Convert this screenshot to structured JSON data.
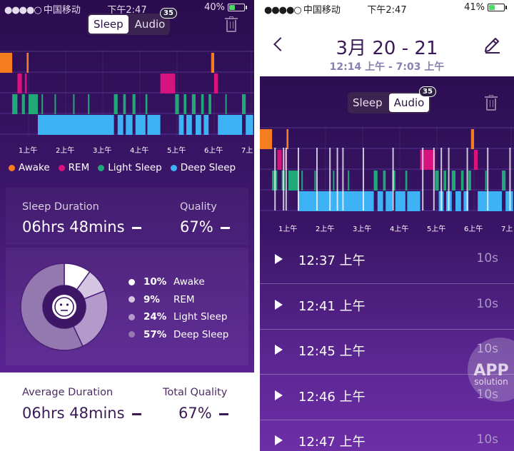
{
  "status_bar": {
    "carrier": "中国移动",
    "time": "下午2:47",
    "battery": "40%",
    "battery_right": "41%",
    "battery_level_left": 0.4,
    "battery_level_right": 0.41
  },
  "colors": {
    "awake": "#f57c1f",
    "rem": "#d6137e",
    "light": "#21a878",
    "deep": "#3db2f5",
    "awake_legend": "#f57c1f",
    "rem_legend": "#d6137e",
    "light_legend": "#21a878",
    "deep_legend": "#3db2f5"
  },
  "left": {
    "segmented": {
      "sleep": "Sleep",
      "audio": "Audio",
      "badge": "35"
    },
    "hour_ticks": [
      "1上午",
      "2上午",
      "3上午",
      "4上午",
      "5上午",
      "6上午",
      "7上"
    ],
    "legend": [
      {
        "label": "Awake",
        "color": "#f57c1f"
      },
      {
        "label": "REM",
        "color": "#d6137e"
      },
      {
        "label": "Light Sleep",
        "color": "#21a878"
      },
      {
        "label": "Deep Sleep",
        "color": "#3db2f5"
      }
    ],
    "stats": {
      "duration_label": "Sleep Duration",
      "duration_value": "06hrs 48mins",
      "quality_label": "Quality",
      "quality_value": "67%"
    },
    "breakdown": [
      {
        "pct": "10%",
        "label": "Awake",
        "value": 10,
        "color": "#ffffff"
      },
      {
        "pct": "9%",
        "label": "REM",
        "value": 9,
        "color": "#d4c6e2"
      },
      {
        "pct": "24%",
        "label": "Light Sleep",
        "value": 24,
        "color": "#b39acb"
      },
      {
        "pct": "57%",
        "label": "Deep Sleep",
        "value": 57,
        "color": "#9479b0"
      }
    ],
    "face_icon": "neutral-face-icon",
    "bottom": {
      "avg_label": "Average Duration",
      "avg_value": "06hrs 48mins",
      "total_label": "Total Quality",
      "total_value": "67%"
    }
  },
  "right": {
    "title": "3月 20 - 21",
    "subtitle": "12:14 上午 - 7:03 上午",
    "back_icon": "chevron-left-icon",
    "edit_icon": "pencil-icon",
    "segmented": {
      "sleep": "Sleep",
      "audio": "Audio",
      "badge": "35"
    },
    "hour_ticks": [
      "1上午",
      "2上午",
      "3上午",
      "4上午",
      "5上午",
      "6上午",
      "7上"
    ],
    "recordings": [
      {
        "time": "12:37 上午",
        "duration": "10s"
      },
      {
        "time": "12:41 上午",
        "duration": "10s"
      },
      {
        "time": "12:45 上午",
        "duration": "10s"
      },
      {
        "time": "12:46 上午",
        "duration": "10s"
      },
      {
        "time": "12:47 上午",
        "duration": "10s"
      }
    ],
    "watermark": {
      "line1": "APP",
      "line2": "solution"
    }
  },
  "hypnogram": {
    "start_hour": 0.23,
    "end_hour": 7.05,
    "segments": [
      [
        0.23,
        0.56,
        "awake"
      ],
      [
        0.56,
        0.7,
        "light"
      ],
      [
        0.7,
        0.82,
        "rem"
      ],
      [
        0.82,
        0.9,
        "light"
      ],
      [
        0.9,
        0.95,
        "rem"
      ],
      [
        0.95,
        1.0,
        "awake"
      ],
      [
        1.0,
        1.25,
        "light"
      ],
      [
        1.25,
        3.3,
        "deep"
      ],
      [
        1.35,
        1.38,
        "light"
      ],
      [
        1.7,
        1.73,
        "light"
      ],
      [
        2.2,
        2.23,
        "light"
      ],
      [
        2.6,
        2.63,
        "light"
      ],
      [
        3.3,
        3.4,
        "light"
      ],
      [
        3.4,
        3.55,
        "deep"
      ],
      [
        3.55,
        3.62,
        "light"
      ],
      [
        3.62,
        3.8,
        "deep"
      ],
      [
        3.8,
        3.88,
        "light"
      ],
      [
        3.88,
        4.15,
        "deep"
      ],
      [
        4.15,
        4.2,
        "light"
      ],
      [
        4.2,
        4.55,
        "deep"
      ],
      [
        4.55,
        4.95,
        "rem"
      ],
      [
        4.95,
        5.05,
        "light"
      ],
      [
        5.05,
        5.18,
        "deep"
      ],
      [
        5.18,
        5.25,
        "light"
      ],
      [
        5.25,
        5.4,
        "deep"
      ],
      [
        5.4,
        5.5,
        "light"
      ],
      [
        5.5,
        5.65,
        "deep"
      ],
      [
        5.65,
        5.72,
        "light"
      ],
      [
        5.72,
        5.85,
        "deep"
      ],
      [
        5.85,
        5.92,
        "light"
      ],
      [
        5.92,
        6.0,
        "awake"
      ],
      [
        6.0,
        6.1,
        "rem"
      ],
      [
        6.1,
        6.75,
        "deep"
      ],
      [
        6.3,
        6.33,
        "light"
      ],
      [
        6.75,
        6.85,
        "light"
      ],
      [
        6.85,
        7.05,
        "deep"
      ]
    ],
    "audio_markers": [
      0.62,
      0.85,
      0.92,
      1.25,
      1.75,
      2.1,
      2.3,
      2.45,
      3.0,
      3.8,
      4.6,
      4.9,
      5.1,
      5.3,
      5.8,
      6.35,
      6.95
    ]
  }
}
